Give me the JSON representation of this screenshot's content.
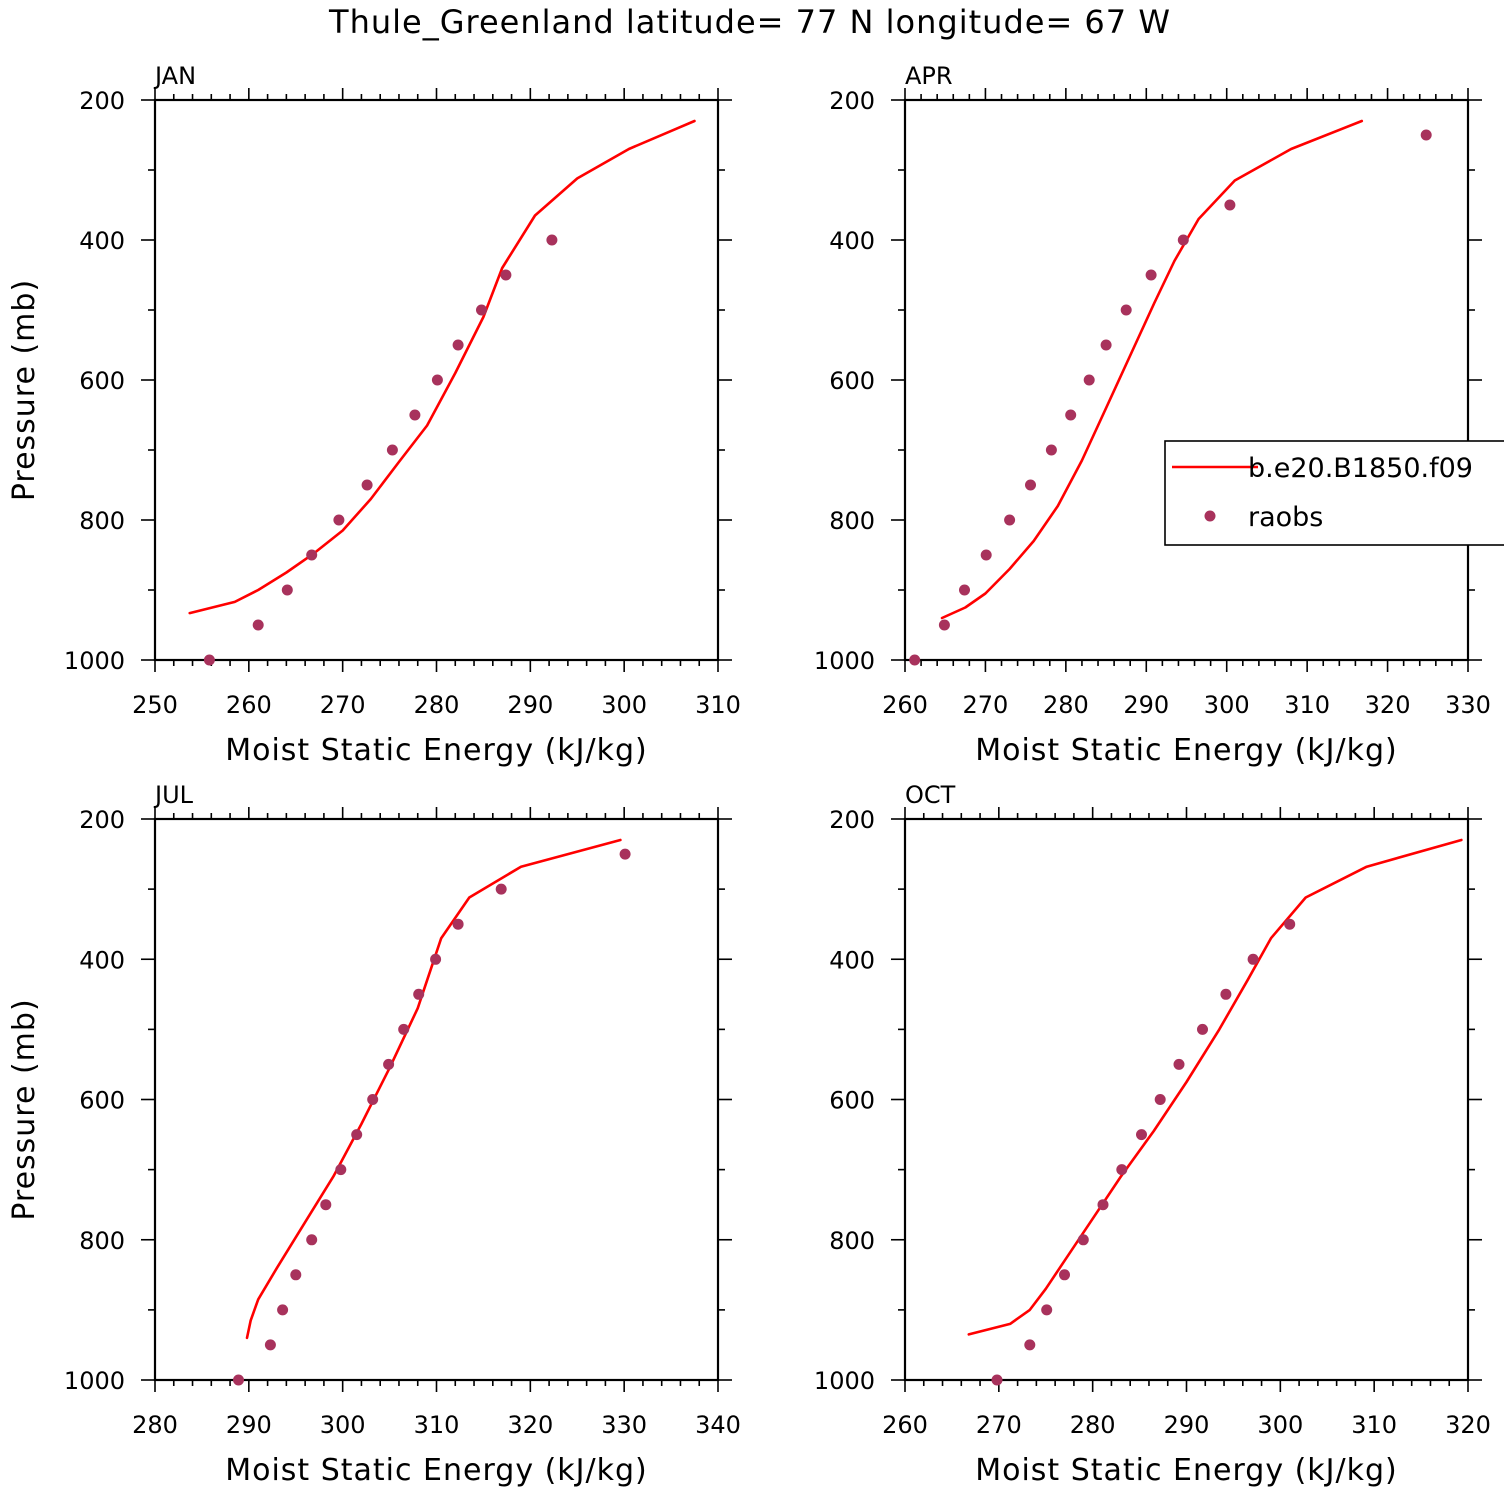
{
  "title": "Thule_Greenland  latitude= 77 N longitude= 67 W",
  "legend": {
    "model_label": "b.e20.B1850.f09",
    "obs_label": "raobs",
    "model_color": "#ff0000",
    "obs_color": "#a8325c"
  },
  "chart_data": [
    {
      "type": "line",
      "panel_label": "JAN",
      "xlabel": "Moist Static Energy (kJ/kg)",
      "ylabel": "Pressure (mb)",
      "xlim": [
        250,
        310
      ],
      "ylim": [
        1000,
        200
      ],
      "xticks": [
        250,
        260,
        270,
        280,
        290,
        300,
        310
      ],
      "yticks": [
        200,
        400,
        600,
        800,
        1000
      ],
      "series": [
        {
          "name": "b.e20.B1850.f09",
          "style": "line",
          "x": [
            253.7,
            258.5,
            261,
            264,
            267,
            270,
            273,
            276,
            279,
            282,
            285,
            287,
            290.5,
            295,
            300.5,
            307.5
          ],
          "y": [
            933,
            917,
            900,
            875,
            847,
            815,
            770,
            717,
            665,
            590,
            510,
            440,
            365,
            312,
            270,
            230
          ]
        },
        {
          "name": "raobs",
          "style": "scatter",
          "x": [
            255.8,
            261.0,
            264.1,
            266.7,
            269.6,
            272.6,
            275.3,
            277.7,
            280.1,
            282.3,
            284.8,
            287.4,
            292.3
          ],
          "y": [
            1000,
            950,
            900,
            850,
            800,
            750,
            700,
            650,
            600,
            550,
            500,
            450,
            400
          ]
        }
      ]
    },
    {
      "type": "line",
      "panel_label": "APR",
      "xlabel": "Moist Static Energy (kJ/kg)",
      "ylabel": "",
      "xlim": [
        260,
        330
      ],
      "ylim": [
        1000,
        200
      ],
      "xticks": [
        260,
        270,
        280,
        290,
        300,
        310,
        320,
        330
      ],
      "yticks": [
        200,
        400,
        600,
        800,
        1000
      ],
      "series": [
        {
          "name": "b.e20.B1850.f09",
          "style": "line",
          "x": [
            264.6,
            267.5,
            270,
            273,
            276,
            279,
            282,
            285,
            288,
            291,
            293.5,
            296.5,
            301,
            308,
            316.8
          ],
          "y": [
            940,
            925,
            905,
            870,
            830,
            780,
            715,
            640,
            565,
            490,
            430,
            370,
            315,
            270,
            230
          ]
        },
        {
          "name": "raobs",
          "style": "scatter",
          "x": [
            261.2,
            264.9,
            267.4,
            270.1,
            273.0,
            275.6,
            278.2,
            280.6,
            282.9,
            285.0,
            287.5,
            290.6,
            294.6,
            300.4,
            324.8
          ],
          "y": [
            1000,
            950,
            900,
            850,
            800,
            750,
            700,
            650,
            600,
            550,
            500,
            450,
            400,
            350,
            250
          ]
        }
      ]
    },
    {
      "type": "line",
      "panel_label": "JUL",
      "xlabel": "Moist Static Energy (kJ/kg)",
      "ylabel": "Pressure (mb)",
      "xlim": [
        280,
        340
      ],
      "ylim": [
        1000,
        200
      ],
      "xticks": [
        280,
        290,
        300,
        310,
        320,
        330,
        340
      ],
      "yticks": [
        200,
        400,
        600,
        800,
        1000
      ],
      "series": [
        {
          "name": "b.e20.B1850.f09",
          "style": "line",
          "x": [
            289.8,
            290.2,
            291,
            293,
            296,
            299,
            302,
            305,
            308,
            310.5,
            313.5,
            319,
            329.6
          ],
          "y": [
            940,
            915,
            885,
            840,
            775,
            710,
            635,
            555,
            470,
            370,
            312,
            268,
            230
          ]
        },
        {
          "name": "raobs",
          "style": "scatter",
          "x": [
            288.9,
            292.3,
            293.6,
            295.0,
            296.7,
            298.2,
            299.8,
            301.5,
            303.2,
            304.9,
            306.5,
            308.1,
            309.9,
            312.3,
            316.9,
            330.1
          ],
          "y": [
            1000,
            950,
            900,
            850,
            800,
            750,
            700,
            650,
            600,
            550,
            500,
            450,
            400,
            350,
            300,
            250
          ]
        }
      ]
    },
    {
      "type": "line",
      "panel_label": "OCT",
      "xlabel": "Moist Static Energy (kJ/kg)",
      "ylabel": "",
      "xlim": [
        260,
        320
      ],
      "ylim": [
        1000,
        200
      ],
      "xticks": [
        260,
        270,
        280,
        290,
        300,
        310,
        320
      ],
      "yticks": [
        200,
        400,
        600,
        800,
        1000
      ],
      "series": [
        {
          "name": "b.e20.B1850.f09",
          "style": "line",
          "x": [
            266.8,
            271.2,
            273.3,
            275,
            277,
            280,
            283,
            286.5,
            290,
            293.5,
            296.5,
            299,
            302.7,
            309.2,
            319.3
          ],
          "y": [
            935,
            920,
            900,
            870,
            830,
            770,
            710,
            645,
            575,
            500,
            430,
            370,
            312,
            268,
            230
          ]
        },
        {
          "name": "raobs",
          "style": "scatter",
          "x": [
            269.8,
            273.3,
            275.1,
            277.0,
            279.0,
            281.1,
            283.1,
            285.2,
            287.2,
            289.2,
            291.7,
            294.2,
            297.1,
            301.0
          ],
          "y": [
            1000,
            950,
            900,
            850,
            800,
            750,
            700,
            650,
            600,
            550,
            500,
            450,
            400,
            350
          ]
        }
      ]
    }
  ]
}
